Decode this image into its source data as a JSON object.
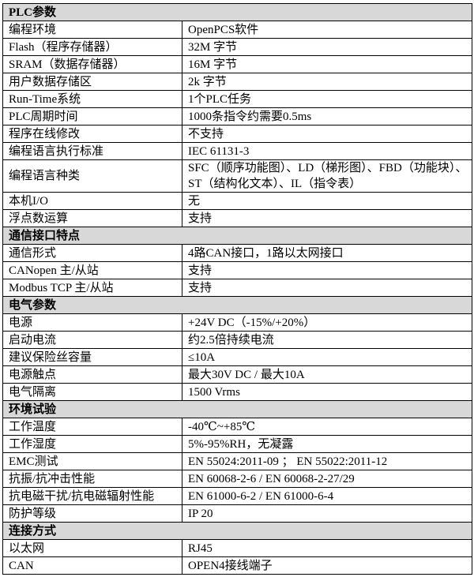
{
  "table": {
    "sections": [
      {
        "title": "PLC参数",
        "rows": [
          {
            "label": "编程环境",
            "value": "OpenPCS软件"
          },
          {
            "label": "Flash（程序存储器）",
            "value": "32M 字节"
          },
          {
            "label": "SRAM（数据存储器）",
            "value": "16M 字节"
          },
          {
            "label": "用户数据存储区",
            "value": "2k 字节"
          },
          {
            "label": "Run-Time系统",
            "value": "1个PLC任务"
          },
          {
            "label": "PLC周期时间",
            "value": "1000条指令约需要0.5ms"
          },
          {
            "label": "程序在线修改",
            "value": "不支持"
          },
          {
            "label": "编程语言执行标准",
            "value": "IEC 61131-3"
          },
          {
            "label": "编程语言种类",
            "value": "SFC（顺序功能图）、LD（梯形图）、FBD（功能块）、ST（结构化文本）、IL（指令表）"
          },
          {
            "label": "本机I/O",
            "value": "无"
          },
          {
            "label": "浮点数运算",
            "value": "支持"
          }
        ]
      },
      {
        "title": "通信接口特点",
        "rows": [
          {
            "label": "通信形式",
            "value": "4路CAN接口，1路以太网接口"
          },
          {
            "label": "CANopen 主/从站",
            "value": "支持"
          },
          {
            "label": "Modbus TCP 主/从站",
            "value": "支持"
          }
        ]
      },
      {
        "title": "电气参数",
        "rows": [
          {
            "label": "电源",
            "value": "+24V DC（-15%/+20%）"
          },
          {
            "label": "启动电流",
            "value": "约2.5倍持续电流"
          },
          {
            "label": "建议保险丝容量",
            "value": "≤10A"
          },
          {
            "label": "电源触点",
            "value": "最大30V DC / 最大10A"
          },
          {
            "label": "电气隔离",
            "value": "1500 Vrms"
          }
        ]
      },
      {
        "title": "环境试验",
        "rows": [
          {
            "label": "工作温度",
            "value": "-40℃~+85℃"
          },
          {
            "label": "工作湿度",
            "value": "5%-95%RH，无凝露"
          },
          {
            "label": "EMC测试",
            "value": "EN 55024:2011-09 ； EN 55022:2011-12"
          },
          {
            "label": "抗振/抗冲击性能",
            "value": "EN 60068-2-6 / EN 60068-2-27/29"
          },
          {
            "label": "抗电磁干扰/抗电磁辐射性能",
            "value": "EN 61000-6-2 / EN 61000-6-4"
          },
          {
            "label": "防护等级",
            "value": "IP 20"
          }
        ]
      },
      {
        "title": "连接方式",
        "rows": [
          {
            "label": "以太网",
            "value": "RJ45"
          },
          {
            "label": "CAN",
            "value": "OPEN4接线端子"
          }
        ]
      }
    ]
  },
  "colors": {
    "section_header_bg": "#d8d8d8",
    "border": "#000000",
    "text": "#000000"
  }
}
